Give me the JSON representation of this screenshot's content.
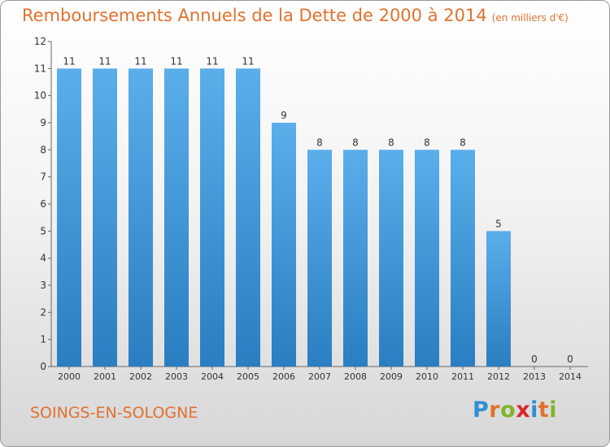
{
  "header": {
    "title": "Remboursements Annuels de la Dette de 2000 à 2014",
    "unit": "(en milliers d'€)"
  },
  "footer": {
    "commune": "SOINGS-EN-SOLOGNE",
    "logo": [
      "P",
      "r",
      "o",
      "x",
      "i",
      "t",
      "i"
    ],
    "logo_colors": [
      "#2f8fd3",
      "#e2712e",
      "#7fb428",
      "#d9262c",
      "#2f8fd3",
      "#e2712e",
      "#7fb428"
    ]
  },
  "colors": {
    "accent": "#e2712e",
    "bar_light": "#5aaeea",
    "bar_dark": "#2a7ec1"
  },
  "chart_data": {
    "type": "bar",
    "categories": [
      "2000",
      "2001",
      "2002",
      "2003",
      "2004",
      "2005",
      "2006",
      "2007",
      "2008",
      "2009",
      "2010",
      "2011",
      "2012",
      "2013",
      "2014"
    ],
    "values": [
      11,
      11,
      11,
      11,
      11,
      11,
      9,
      8,
      8,
      8,
      8,
      8,
      5,
      0,
      0
    ],
    "ylim": [
      0,
      12
    ],
    "yticks": [
      0,
      1,
      2,
      3,
      4,
      5,
      6,
      7,
      8,
      9,
      10,
      11,
      12
    ],
    "grid": false,
    "data_labels": true
  }
}
